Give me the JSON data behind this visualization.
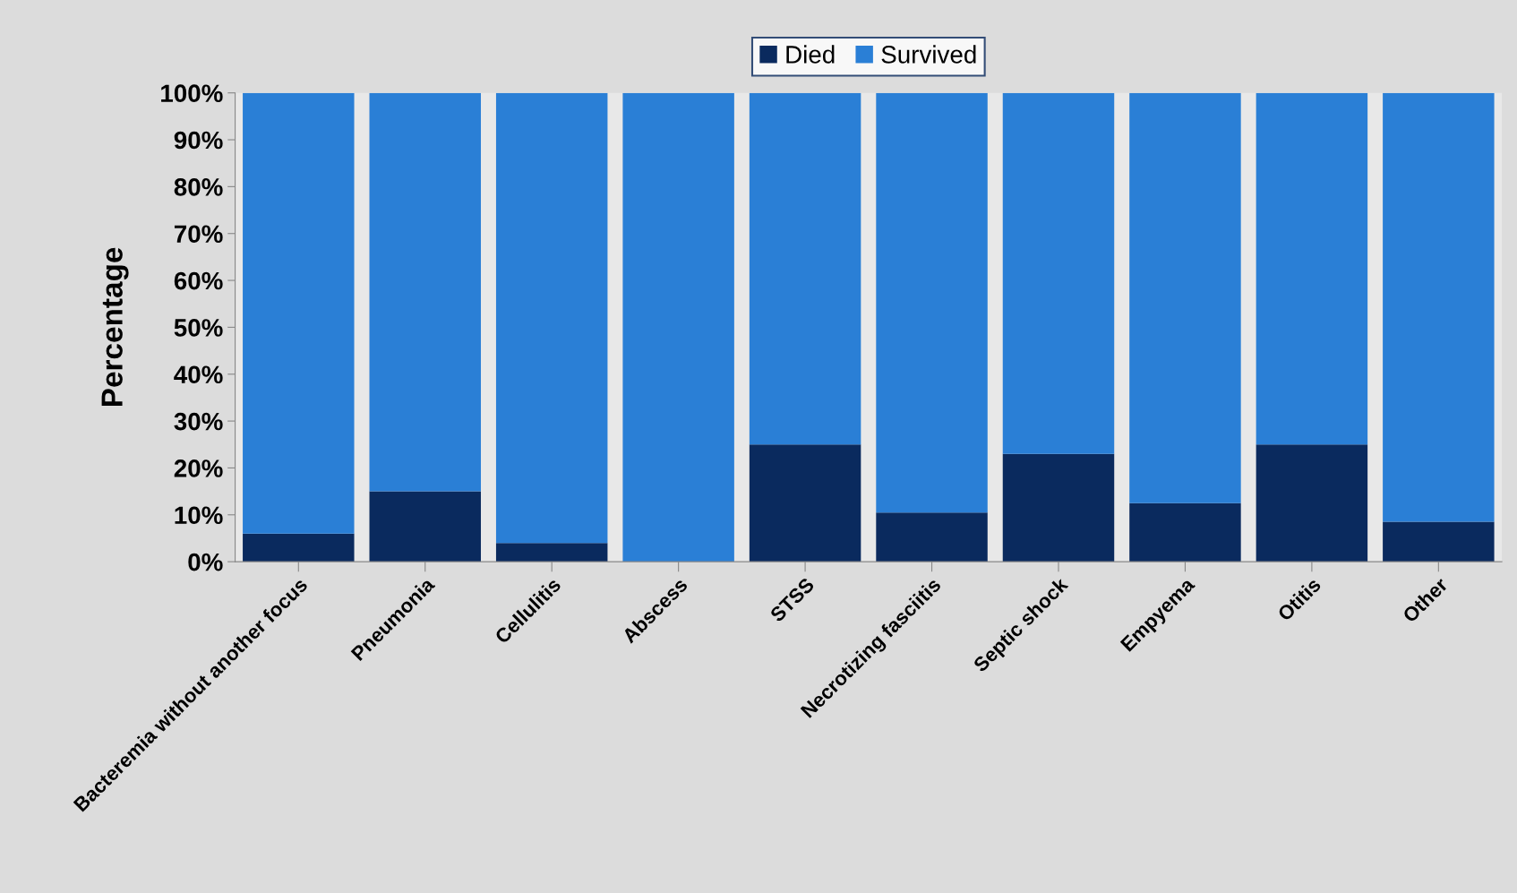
{
  "chart_data": {
    "type": "bar",
    "stacked": true,
    "ylabel": "Percentage",
    "categories": [
      "Bacteremia without another focus",
      "Pneumonia",
      "Cellulitis",
      "Abscess",
      "STSS",
      "Necrotizing fasciitis",
      "Septic shock",
      "Empyema",
      "Otitis",
      "Other"
    ],
    "series": [
      {
        "name": "Died",
        "color": "#0a2a5e",
        "values": [
          6,
          15,
          4,
          0,
          25,
          10.5,
          23,
          12.5,
          25,
          8.5
        ]
      },
      {
        "name": "Survived",
        "color": "#2a7fd6",
        "values": [
          94,
          85,
          96,
          100,
          75,
          89.5,
          77,
          87.5,
          75,
          91.5
        ]
      }
    ],
    "ylim": [
      0,
      100
    ],
    "yticks": [
      {
        "value": 0,
        "label": "0%"
      },
      {
        "value": 10,
        "label": "10%"
      },
      {
        "value": 20,
        "label": "20%"
      },
      {
        "value": 30,
        "label": "30%"
      },
      {
        "value": 40,
        "label": "40%"
      },
      {
        "value": 50,
        "label": "50%"
      },
      {
        "value": 60,
        "label": "60%"
      },
      {
        "value": 70,
        "label": "70%"
      },
      {
        "value": 80,
        "label": "80%"
      },
      {
        "value": 90,
        "label": "90%"
      },
      {
        "value": 100,
        "label": "100%"
      }
    ],
    "grid": false,
    "legend": "top"
  }
}
